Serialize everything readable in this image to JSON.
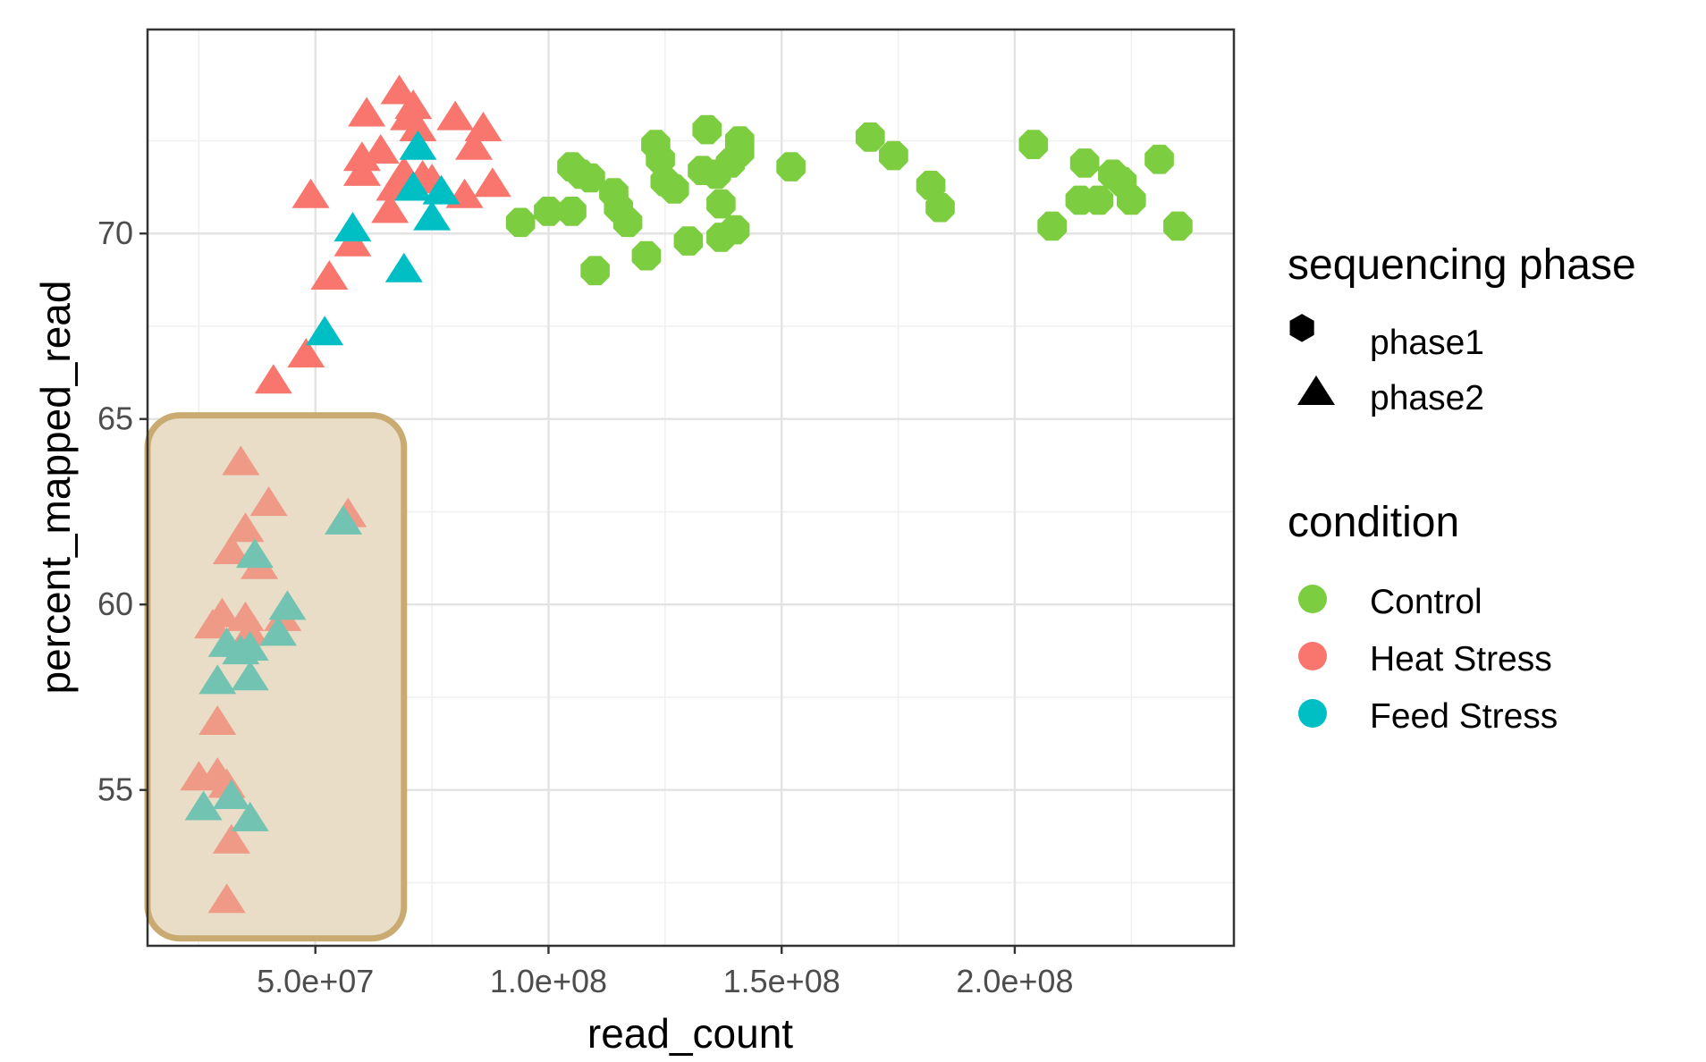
{
  "chart_data": {
    "type": "scatter",
    "title": "",
    "xlabel": "read_count",
    "ylabel": "percent_mapped_read",
    "xlim": [
      14000000,
      247000000
    ],
    "ylim": [
      50.8,
      75.5
    ],
    "x_ticks": [
      50000000,
      100000000,
      150000000,
      200000000
    ],
    "x_tick_labels": [
      "5.0e+07",
      "1.0e+08",
      "1.5e+08",
      "2.0e+08"
    ],
    "y_ticks": [
      55,
      60,
      65,
      70
    ],
    "y_tick_labels": [
      "55",
      "60",
      "65",
      "70"
    ],
    "grid": true,
    "legend_position": "right",
    "legends": [
      {
        "title": "sequencing phase",
        "kind": "shape",
        "items": [
          {
            "label": "phase1",
            "shape": "circle"
          },
          {
            "label": "phase2",
            "shape": "triangle"
          }
        ]
      },
      {
        "title": "condition",
        "kind": "color",
        "items": [
          {
            "label": "Control",
            "color": "#7CCD3F"
          },
          {
            "label": "Heat Stress",
            "color": "#F8766D"
          },
          {
            "label": "Feed Stress",
            "color": "#00BFC4"
          }
        ]
      }
    ],
    "highlight_region": {
      "x": [
        14000000,
        69000000
      ],
      "y": [
        51.0,
        65.1
      ],
      "fill": "#E9DDC7",
      "stroke": "#C9AB72"
    },
    "series": [
      {
        "condition": "Control",
        "phase": "phase1",
        "color": "#7CCD3F",
        "shape": "circle",
        "points": [
          [
            94000000,
            70.3
          ],
          [
            100000000,
            70.6
          ],
          [
            105000000,
            70.6
          ],
          [
            105000000,
            71.8
          ],
          [
            107000000,
            71.6
          ],
          [
            109000000,
            71.5
          ],
          [
            110000000,
            69.0
          ],
          [
            114000000,
            71.1
          ],
          [
            115000000,
            70.7
          ],
          [
            117000000,
            70.3
          ],
          [
            121000000,
            69.4
          ],
          [
            123000000,
            72.4
          ],
          [
            124000000,
            72.0
          ],
          [
            125000000,
            71.4
          ],
          [
            127000000,
            71.2
          ],
          [
            130000000,
            69.8
          ],
          [
            133000000,
            71.7
          ],
          [
            134000000,
            72.8
          ],
          [
            136000000,
            71.6
          ],
          [
            137000000,
            70.8
          ],
          [
            137000000,
            69.9
          ],
          [
            139000000,
            71.9
          ],
          [
            140000000,
            70.1
          ],
          [
            141000000,
            72.2
          ],
          [
            141000000,
            72.5
          ],
          [
            152000000,
            71.8
          ],
          [
            169000000,
            72.6
          ],
          [
            174000000,
            72.1
          ],
          [
            182000000,
            71.3
          ],
          [
            184000000,
            70.7
          ],
          [
            204000000,
            72.4
          ],
          [
            208000000,
            70.2
          ],
          [
            214000000,
            70.9
          ],
          [
            215000000,
            71.9
          ],
          [
            218000000,
            70.9
          ],
          [
            221000000,
            71.6
          ],
          [
            223000000,
            71.4
          ],
          [
            225000000,
            70.9
          ],
          [
            231000000,
            72.0
          ],
          [
            235000000,
            70.2
          ]
        ]
      },
      {
        "condition": "Heat Stress",
        "phase": "phase2",
        "color": "#F8766D",
        "shape": "triangle",
        "points": [
          [
            41000000,
            66.0
          ],
          [
            48000000,
            66.7
          ],
          [
            49000000,
            71.0
          ],
          [
            53000000,
            68.8
          ],
          [
            58000000,
            69.7
          ],
          [
            60000000,
            72.0
          ],
          [
            60000000,
            71.6
          ],
          [
            61000000,
            73.2
          ],
          [
            64000000,
            72.2
          ],
          [
            66000000,
            70.6
          ],
          [
            67000000,
            71.2
          ],
          [
            68000000,
            73.8
          ],
          [
            69000000,
            71.6
          ],
          [
            70000000,
            73.1
          ],
          [
            71000000,
            73.4
          ],
          [
            72000000,
            72.8
          ],
          [
            73000000,
            71.5
          ],
          [
            75000000,
            71.4
          ],
          [
            80000000,
            73.1
          ],
          [
            82000000,
            71.0
          ],
          [
            84000000,
            72.3
          ],
          [
            86000000,
            72.8
          ],
          [
            88000000,
            71.3
          ]
        ]
      },
      {
        "condition": "Feed Stress",
        "phase": "phase2",
        "color": "#00BFC4",
        "shape": "triangle",
        "points": [
          [
            52000000,
            67.3
          ],
          [
            58000000,
            70.1
          ],
          [
            69000000,
            69.0
          ],
          [
            71000000,
            71.2
          ],
          [
            72000000,
            72.3
          ],
          [
            75000000,
            70.4
          ],
          [
            77000000,
            71.1
          ]
        ]
      },
      {
        "condition": "Heat Stress",
        "phase": "phase2",
        "color": "#EE9A86",
        "shape": "triangle",
        "points": [
          [
            34000000,
            63.8
          ],
          [
            40000000,
            62.7
          ],
          [
            57000000,
            62.4
          ],
          [
            35000000,
            62.0
          ],
          [
            32000000,
            61.4
          ],
          [
            38000000,
            61.0
          ],
          [
            28000000,
            59.4
          ],
          [
            30000000,
            59.7
          ],
          [
            35000000,
            59.6
          ],
          [
            36000000,
            59.2
          ],
          [
            43000000,
            59.6
          ],
          [
            29000000,
            56.8
          ],
          [
            25000000,
            55.3
          ],
          [
            29000000,
            55.4
          ],
          [
            31000000,
            55.1
          ],
          [
            32000000,
            53.6
          ],
          [
            31000000,
            52.0
          ]
        ]
      },
      {
        "condition": "Feed Stress",
        "phase": "phase2",
        "color": "#72C3B1",
        "shape": "triangle",
        "points": [
          [
            37000000,
            61.3
          ],
          [
            56000000,
            62.2
          ],
          [
            44000000,
            59.9
          ],
          [
            42000000,
            59.2
          ],
          [
            31000000,
            58.9
          ],
          [
            34000000,
            58.7
          ],
          [
            36000000,
            58.8
          ],
          [
            29000000,
            57.9
          ],
          [
            36000000,
            58.0
          ],
          [
            26000000,
            54.5
          ],
          [
            32000000,
            54.8
          ],
          [
            36000000,
            54.2
          ]
        ]
      }
    ]
  }
}
